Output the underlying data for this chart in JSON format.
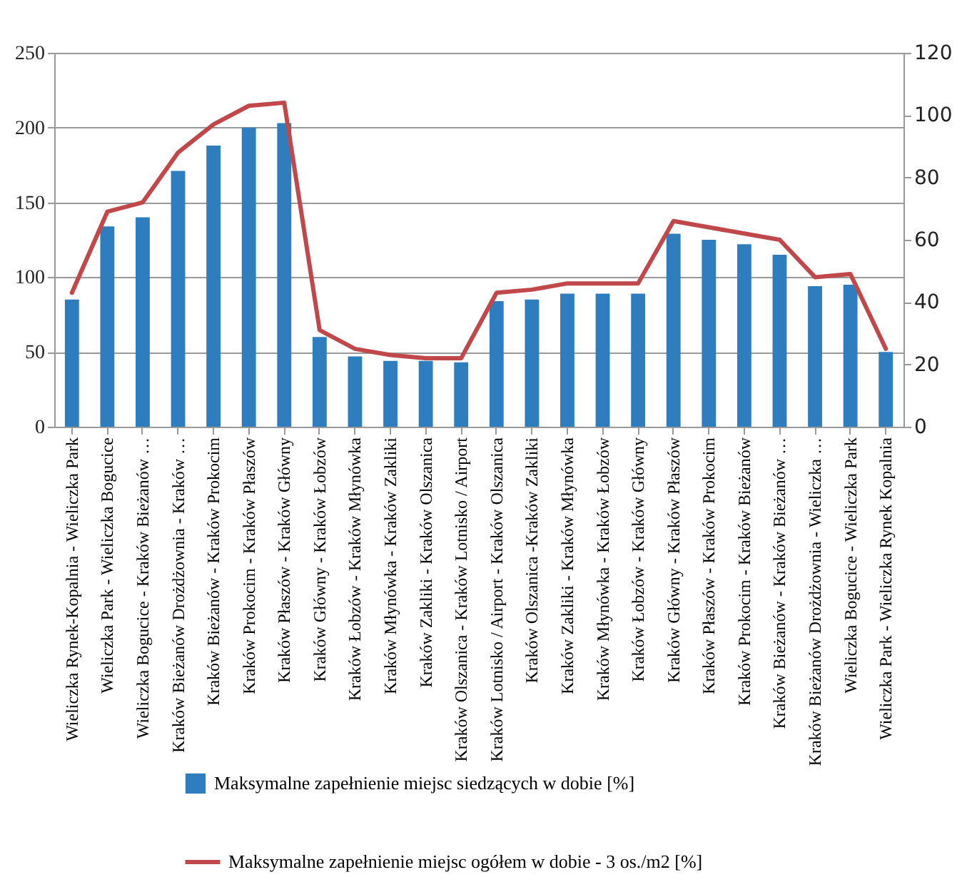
{
  "chart_data": {
    "type": "bar",
    "categories": [
      "Wieliczka Rynek-Kopalnia - Wieliczka Park",
      "Wieliczka Park - Wieliczka Bogucice",
      "Wieliczka Bogucice - Kraków Bieżanów …",
      "Kraków Bieżanów Drożdżownia - Kraków …",
      "Kraków Bieżanów - Kraków Prokocim",
      "Kraków Prokocim - Kraków Płaszów",
      "Kraków Płaszów - Kraków Główny",
      "Kraków Główny - Kraków Łobzów",
      "Kraków Łobzów - Kraków Młynówka",
      "Kraków Młynówka - Kraków Zakliki",
      "Kraków Zakliki - Kraków Olszanica",
      "Kraków Olszanica - Kraków Lotnisko / Airport",
      "Kraków Lotnisko / Airport - Kraków Olszanica",
      "Kraków Olszanica -Kraków Zakliki",
      "Kraków Zakliki - Kraków Młynówka",
      "Kraków Młynówka - Kraków Łobzów",
      "Kraków Łobzów - Kraków Główny",
      "Kraków Główny - Kraków Płaszów",
      "Kraków Płaszów - Kraków Prokocim",
      "Kraków Prokocim - Kraków Bieżanów",
      "Kraków Bieżanów - Kraków Bieżanów …",
      "Kraków Bieżanów Drożdżownia - Wieliczka …",
      "Wieliczka Bogucice - Wieliczka Park",
      "Wieliczka Park - Wieliczka Rynek Kopalnia"
    ],
    "series": [
      {
        "name": "Maksymalne zapełnienie miejsc siedzących w dobie [%]",
        "color": "#2e7ebf",
        "values": [
          85,
          134,
          140,
          171,
          188,
          200,
          203,
          60,
          47,
          44,
          44,
          43,
          84,
          85,
          89,
          89,
          89,
          129,
          125,
          122,
          115,
          94,
          95,
          50
        ]
      },
      {
        "name": "Maksymalne zapełnienie miejsc ogółem w dobie - 3 os./m2 [%]",
        "type": "line",
        "axis": "y2",
        "color": "#c0474a",
        "values": [
          43,
          69,
          72,
          88,
          97,
          103,
          104,
          31,
          25,
          23,
          22,
          22,
          43,
          44,
          46,
          46,
          46,
          66,
          64,
          62,
          60,
          48,
          49,
          25
        ]
      }
    ],
    "ylim": [
      0,
      250
    ],
    "yticks": [
      0,
      50,
      100,
      150,
      200,
      250
    ],
    "y2lim": [
      0,
      120
    ],
    "y2ticks": [
      0,
      20,
      40,
      60,
      80,
      100,
      120
    ],
    "grid": "y",
    "legend": "bottom"
  }
}
